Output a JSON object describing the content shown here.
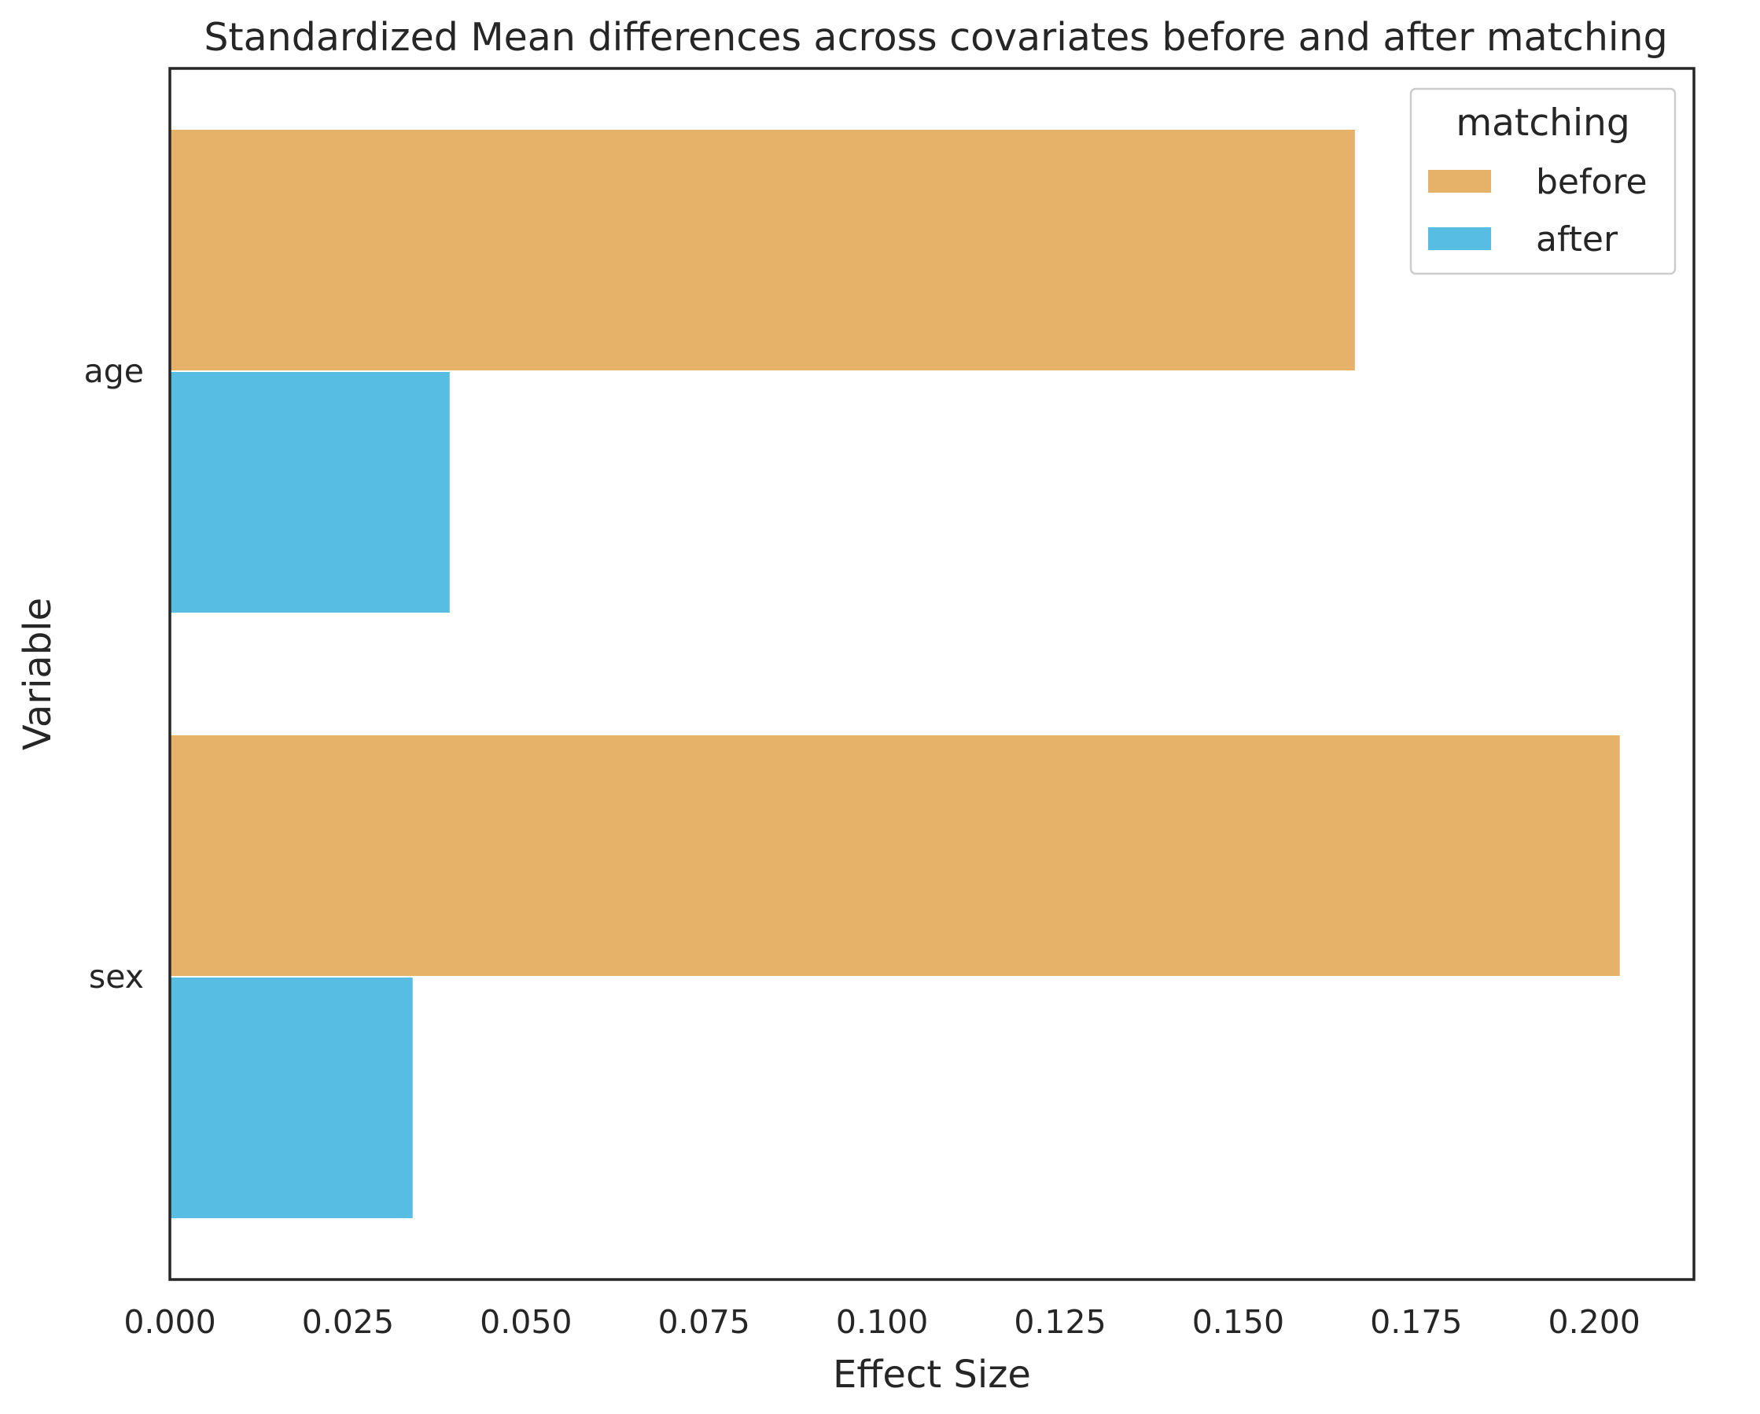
{
  "chart_data": {
    "type": "bar",
    "orientation": "horizontal",
    "title": "Standardized Mean differences across covariates before and after matching",
    "xlabel": "Effect Size",
    "ylabel": "Variable",
    "categories": [
      "age",
      "sex"
    ],
    "series": [
      {
        "name": "before",
        "color": "#E6B26A",
        "values": [
          0.1665,
          0.2037
        ]
      },
      {
        "name": "after",
        "color": "#58BDE3",
        "values": [
          0.0394,
          0.0342
        ]
      }
    ],
    "xlim": [
      0.0,
      0.214
    ],
    "xticks": [
      0.0,
      0.025,
      0.05,
      0.075,
      0.1,
      0.125,
      0.15,
      0.175,
      0.2
    ],
    "xtick_labels": [
      "0.000",
      "0.025",
      "0.050",
      "0.075",
      "0.100",
      "0.125",
      "0.150",
      "0.175",
      "0.200"
    ],
    "legend": {
      "title": "matching",
      "placement": "top-right",
      "entries": [
        "before",
        "after"
      ]
    },
    "grid": false
  }
}
